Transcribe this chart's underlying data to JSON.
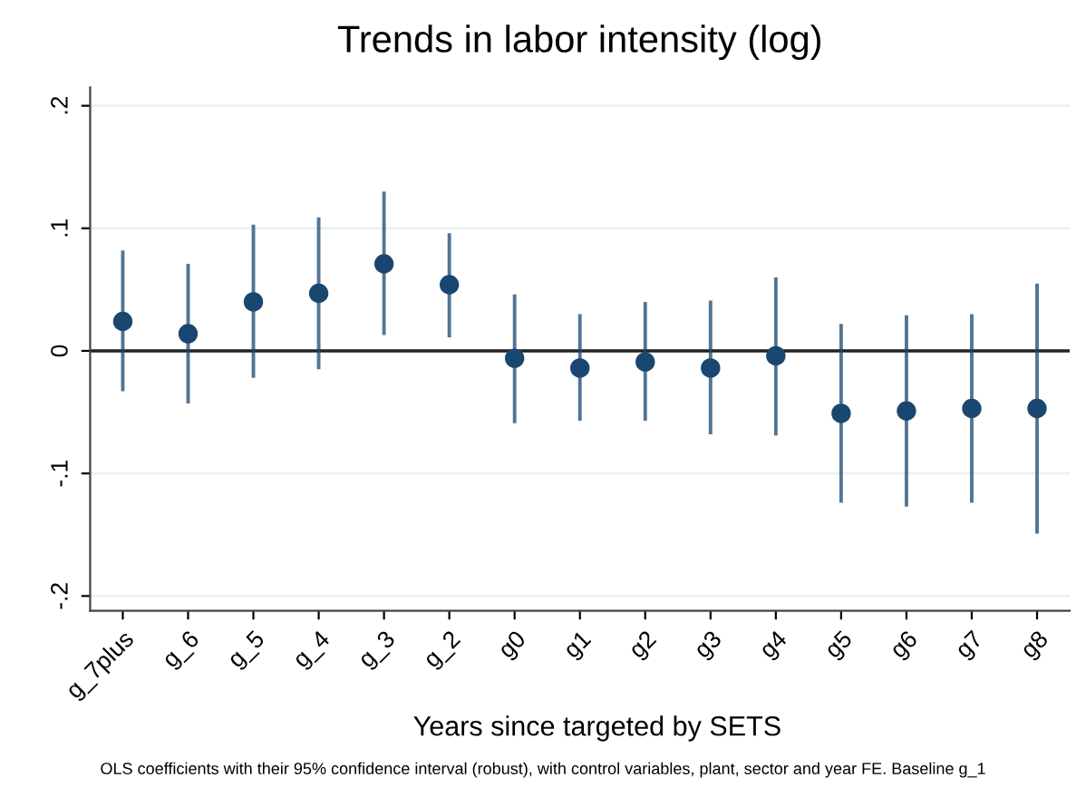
{
  "chart_data": {
    "type": "scatter",
    "title": "Trends in labor intensity (log)",
    "xlabel": "Years since targeted by SETS",
    "annotations": [
      "OLS coefficients with their 95% confidence interval (robust), with control variables, plant, sector and year FE. Baseline g_1"
    ],
    "categories": [
      "g_7plus",
      "g_6",
      "g_5",
      "g_4",
      "g_3",
      "g_2",
      "g0",
      "g1",
      "g2",
      "g3",
      "g4",
      "g5",
      "g6",
      "g7",
      "g8"
    ],
    "series": [
      {
        "color": "#1a476f",
        "values": [
          0.024,
          0.014,
          0.04,
          0.047,
          0.071,
          0.054,
          -0.006,
          -0.014,
          -0.009,
          -0.014,
          -0.004,
          -0.051,
          -0.049,
          -0.047,
          -0.047
        ],
        "errors": [
          [
            -0.033,
            0.082
          ],
          [
            -0.043,
            0.071
          ],
          [
            -0.022,
            0.103
          ],
          [
            -0.015,
            0.109
          ],
          [
            0.013,
            0.13
          ],
          [
            0.011,
            0.096
          ],
          [
            -0.059,
            0.046
          ],
          [
            -0.057,
            0.03
          ],
          [
            -0.057,
            0.04
          ],
          [
            -0.068,
            0.041
          ],
          [
            -0.069,
            0.06
          ],
          [
            -0.124,
            0.022
          ],
          [
            -0.127,
            0.029
          ],
          [
            -0.124,
            0.03
          ],
          [
            -0.149,
            0.055
          ]
        ]
      }
    ],
    "ylim": [
      -0.212,
      0.215
    ],
    "yticks": [
      {
        "value": -0.2,
        "label": "-.2"
      },
      {
        "value": -0.1,
        "label": "-.1"
      },
      0,
      {
        "value": 0.1,
        "label": ".1"
      },
      {
        "value": 0.2,
        "label": ".2"
      }
    ],
    "ref_lines": [
      {
        "axis": "y",
        "value": 0,
        "color": "#222222"
      }
    ],
    "grid": "y",
    "marker": "circle",
    "legend": false
  }
}
